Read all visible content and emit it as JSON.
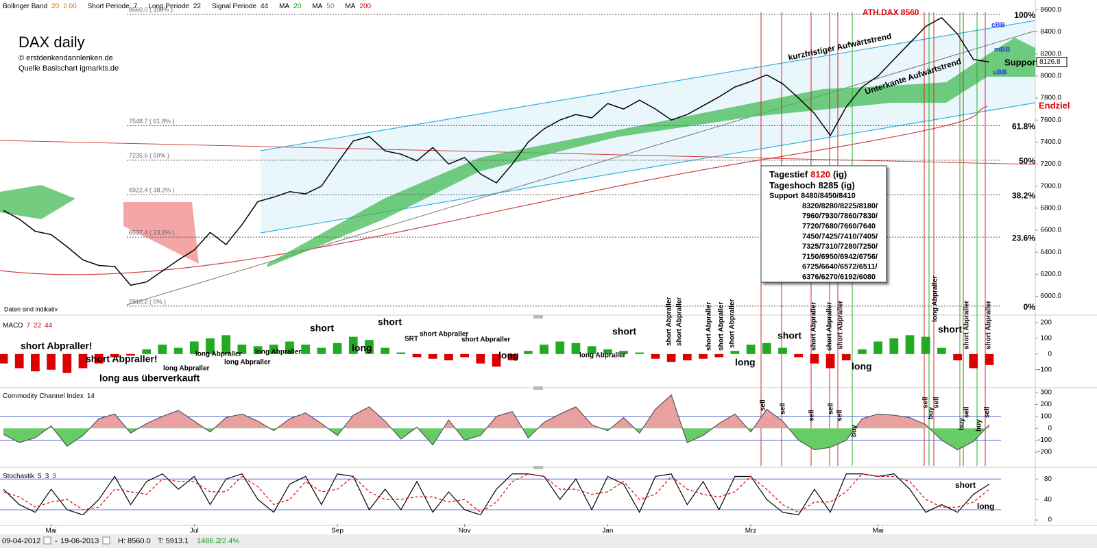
{
  "header": [
    {
      "label": "Bollinger Band",
      "params": [
        {
          "text": "20",
          "color": "#e07000"
        },
        {
          "text": "2.00",
          "color": "#e07000"
        }
      ]
    },
    {
      "label": "Short Periode",
      "params": [
        {
          "text": "7",
          "color": "#000000"
        }
      ]
    },
    {
      "label": "Long Periode",
      "params": [
        {
          "text": "22",
          "color": "#000000"
        }
      ]
    },
    {
      "label": "Signal Periode",
      "params": [
        {
          "text": "44",
          "color": "#000000"
        }
      ]
    },
    {
      "label": "MA",
      "params": [
        {
          "text": "20",
          "color": "#00a000"
        }
      ]
    },
    {
      "label": "MA",
      "params": [
        {
          "text": "50",
          "color": "#808080"
        }
      ]
    },
    {
      "label": "MA",
      "params": [
        {
          "text": "200",
          "color": "#d00000"
        }
      ]
    }
  ],
  "status": {
    "start": "09-04-2012",
    "end": "19-06-2013",
    "high": "H: 8560.0",
    "low": "T: 5913.1",
    "change": "1486.2",
    "change_pct": "22.4%"
  },
  "chart_data": [
    {
      "type": "line",
      "title": "DAX daily",
      "subtitle": [
        "© erstdenkendannlenken.de",
        "Quelle Basischart igmarkts.de"
      ],
      "note": "Daten sind indikativ",
      "color": "#000000",
      "values": [
        6780,
        6700,
        6590,
        6560,
        6450,
        6330,
        6280,
        6270,
        6100,
        6130,
        6230,
        6330,
        6420,
        6580,
        6470,
        6650,
        6860,
        6900,
        6950,
        6930,
        7000,
        7210,
        7410,
        7450,
        7320,
        7290,
        7230,
        7350,
        7200,
        7260,
        7110,
        7030,
        7200,
        7400,
        7520,
        7600,
        7650,
        7620,
        7750,
        7700,
        7780,
        7700,
        7600,
        7650,
        7730,
        7810,
        7900,
        7950,
        8010,
        7930,
        7800,
        7660,
        7460,
        7720,
        7900,
        8000,
        8150,
        8300,
        8450,
        8530,
        8380,
        8150,
        8127
      ],
      "ylim": [
        5860,
        8640
      ],
      "yticks": [
        {
          "value": 6000,
          "label": "6000.0"
        },
        {
          "value": 6200,
          "label": "6200.0"
        },
        {
          "value": 6400,
          "label": "6400.0"
        },
        {
          "value": 6600,
          "label": "6600.0"
        },
        {
          "value": 6800,
          "label": "6800.0"
        },
        {
          "value": 7000,
          "label": "7000.0"
        },
        {
          "value": 7200,
          "label": "7200.0"
        },
        {
          "value": 7400,
          "label": "7400.0"
        },
        {
          "value": 7600,
          "label": "7600.0"
        },
        {
          "value": 7800,
          "label": "7800.0"
        },
        {
          "value": 8000,
          "label": "8000.0"
        },
        {
          "value": 8200,
          "label": "8200.0"
        },
        {
          "value": 8400,
          "label": "8400.0"
        },
        {
          "value": 8600,
          "label": "8600.0"
        }
      ],
      "last": 8126.8,
      "fib_levels": [
        {
          "value": 8560,
          "label": "100%",
          "price_label": "8560.0 ( 100% )"
        },
        {
          "value": 7548.7,
          "label": "61.8%",
          "price_label": "7548.7 ( 61.8% )"
        },
        {
          "value": 7235.6,
          "label": "50%",
          "price_label": "7235.6 ( 50% )"
        },
        {
          "value": 6922.4,
          "label": "38.2%",
          "price_label": "6922.4 ( 38.2% )"
        },
        {
          "value": 6537.4,
          "label": "23.6%",
          "price_label": "6537.4 ( 23.6% )"
        },
        {
          "value": 5910.2,
          "label": "0%",
          "price_label": "5910.2 ( 0% )"
        }
      ],
      "annotations": [
        {
          "text": "kurzfristiger Aufwärtstrend",
          "color": "#000000"
        },
        {
          "text": "Unterkante Aufwärtstrend",
          "color": "#000000"
        },
        {
          "text": "ATH.DAX 8560",
          "color": "#e00000"
        },
        {
          "text": "Support",
          "color": "#000000"
        },
        {
          "text": "Endziel",
          "color": "#e00000"
        },
        {
          "text": "cBB",
          "color": "#2040e0"
        },
        {
          "text": "mBB",
          "color": "#2040e0"
        },
        {
          "text": "uBB",
          "color": "#2040e0"
        }
      ],
      "info_box": {
        "lines": [
          {
            "label": "Tagestief",
            "value": 8120,
            "note": "(ig)",
            "value_color": "#e00000"
          },
          {
            "label": "Tageshoch",
            "value": 8285,
            "note": "(ig)",
            "value_color": "#000000"
          }
        ],
        "support_label": "Support",
        "support": [
          "8480/8450/8410",
          "8320/8280/8225/8180/",
          "7960/7930/7860/7830/",
          "7720/7680/7660/7640",
          "7450/7425/7410/7405/",
          "7325/7310/7280/7250/",
          "7150/6950/6942/6756/",
          "6725/6640/6572/6511/",
          "6376/6270/6192/6080"
        ]
      }
    },
    {
      "type": "bar",
      "title": "MACD",
      "params": [
        {
          "text": "7",
          "color": "#d00000"
        },
        {
          "text": "22",
          "color": "#d00000"
        },
        {
          "text": "44",
          "color": "#d00000"
        }
      ],
      "pos_color": "#22aa22",
      "neg_color": "#dd0000",
      "values": [
        -60,
        -90,
        -110,
        -100,
        -120,
        -90,
        -60,
        -20,
        -10,
        30,
        60,
        40,
        80,
        100,
        120,
        60,
        50,
        60,
        80,
        60,
        40,
        70,
        110,
        90,
        40,
        10,
        -20,
        -30,
        -40,
        -20,
        -60,
        -80,
        -40,
        20,
        60,
        80,
        70,
        50,
        30,
        20,
        10,
        -30,
        -50,
        -40,
        -30,
        -20,
        20,
        60,
        70,
        40,
        -20,
        -60,
        -90,
        -40,
        30,
        80,
        100,
        120,
        110,
        40,
        -40,
        -90,
        -70
      ],
      "ylim": [
        -210,
        226
      ],
      "yticks": [
        -100,
        0,
        100,
        200
      ],
      "annotations": [
        "short Abpraller!",
        "short Abpraller!",
        "long aus überverkauft",
        "long Abpraller",
        "long Abpraller",
        "long Abpraller",
        "long Abpraller",
        "short",
        "long",
        "short",
        "SRT",
        "short Abpraller",
        "short Abpraller",
        "long",
        "long Abpraller",
        "short",
        "short Abpraller",
        "short Abpraller",
        "short Abpraller",
        "short Abpraller",
        "short Abpraller",
        "long",
        "short",
        "short Abpraller",
        "short Abpraller",
        "short Abpraller",
        "long",
        "long Abpraller",
        "short",
        "short Abpraller",
        "short Abpraller"
      ]
    },
    {
      "type": "area",
      "title": "Commodity Channel Index",
      "params": [
        {
          "text": "14",
          "color": "#000000"
        }
      ],
      "color": "#555555",
      "pos_color": "#e8a0a0",
      "neg_color": "#66cc66",
      "values": [
        -50,
        -120,
        -80,
        20,
        -150,
        -60,
        80,
        120,
        -40,
        40,
        100,
        150,
        60,
        -30,
        90,
        120,
        60,
        -20,
        80,
        130,
        40,
        -60,
        110,
        180,
        60,
        -90,
        10,
        -140,
        70,
        -100,
        -60,
        100,
        140,
        -80,
        50,
        120,
        180,
        30,
        -20,
        90,
        -40,
        160,
        280,
        -120,
        -60,
        40,
        120,
        -30,
        160,
        60,
        -100,
        -180,
        -160,
        -100,
        80,
        120,
        110,
        90,
        30,
        -100,
        -180,
        -110,
        30
      ],
      "ylim": [
        -315,
        329
      ],
      "yticks": [
        -200,
        -100,
        0,
        100,
        200,
        300
      ],
      "reference_lines": [
        100,
        -100
      ],
      "annotations": [
        "sell",
        "sell",
        "sell",
        "sell",
        "sell",
        "buy",
        "sell",
        "buy",
        "sell",
        "buy",
        "sell",
        "buy",
        "sell"
      ]
    },
    {
      "type": "line",
      "title": "Stochastik",
      "params": [
        {
          "text": "5",
          "color": "#000000"
        },
        {
          "text": "3",
          "color": "#000000"
        },
        {
          "text": "3",
          "color": "#d00000"
        }
      ],
      "categories": [
        null,
        null,
        null,
        "Mai",
        null,
        null,
        null,
        null,
        null,
        null,
        null,
        null,
        "Jul",
        null,
        null,
        null,
        null,
        null,
        null,
        null,
        null,
        "Sep",
        null,
        null,
        null,
        null,
        null,
        null,
        null,
        "Nov",
        null,
        null,
        null,
        null,
        null,
        null,
        null,
        null,
        "Jan",
        null,
        null,
        null,
        null,
        null,
        null,
        null,
        null,
        "Mrz",
        null,
        null,
        null,
        null,
        null,
        null,
        null,
        "Mai",
        null,
        null,
        null,
        null,
        null,
        null,
        null
      ],
      "series": [
        {
          "color": "#000000",
          "values": [
            60,
            30,
            15,
            60,
            20,
            10,
            40,
            85,
            30,
            75,
            90,
            60,
            85,
            30,
            80,
            90,
            40,
            15,
            70,
            85,
            30,
            90,
            85,
            20,
            60,
            20,
            75,
            15,
            55,
            20,
            10,
            60,
            90,
            90,
            85,
            40,
            80,
            20,
            85,
            70,
            15,
            85,
            90,
            30,
            75,
            20,
            85,
            85,
            40,
            15,
            10,
            60,
            15,
            90,
            90,
            85,
            90,
            60,
            15,
            30,
            15,
            50,
            70
          ]
        },
        {
          "color": "#e00000",
          "values": [
            55,
            45,
            25,
            35,
            40,
            20,
            25,
            60,
            55,
            50,
            80,
            75,
            75,
            55,
            55,
            85,
            65,
            30,
            40,
            75,
            55,
            60,
            85,
            55,
            40,
            40,
            45,
            45,
            35,
            40,
            15,
            35,
            75,
            90,
            85,
            60,
            60,
            50,
            55,
            75,
            40,
            50,
            85,
            60,
            50,
            45,
            55,
            85,
            60,
            30,
            15,
            35,
            35,
            55,
            90,
            85,
            85,
            75,
            40,
            25,
            25,
            35,
            60
          ]
        }
      ],
      "ylim": [
        -8,
        99
      ],
      "yticks": [
        0,
        40,
        80
      ],
      "reference_lines": [
        80,
        20
      ],
      "annotations": [
        "short",
        "long"
      ]
    }
  ]
}
